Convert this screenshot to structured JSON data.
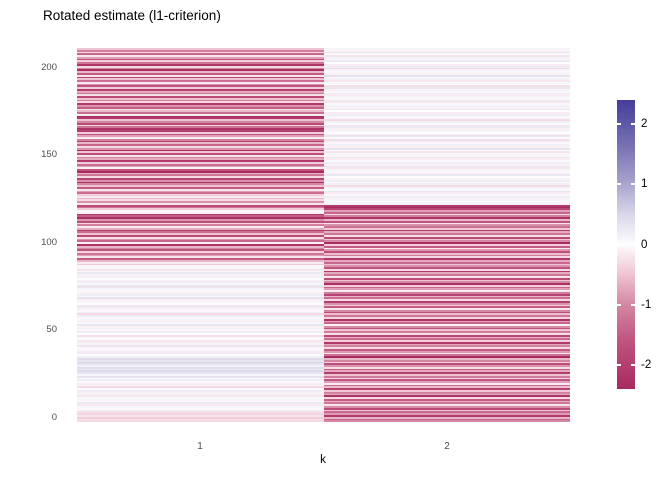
{
  "header": {
    "title": "Rotated estimate (l1-criterion)"
  },
  "axes": {
    "x_label": "k",
    "x_tick_labels": [
      "1",
      "2"
    ],
    "y_tick_labels": [
      "0",
      "50",
      "100",
      "150",
      "200"
    ]
  },
  "legend": {
    "tick_labels": [
      "2",
      "1",
      "0",
      "-1",
      "-2"
    ]
  },
  "chart_data": {
    "type": "heatmap",
    "title": "Rotated estimate (l1-criterion)",
    "xlabel": "k",
    "ylabel": "",
    "x_categories": [
      1,
      2
    ],
    "y_range": [
      1,
      210
    ],
    "y_axis_ticks": [
      0,
      50,
      100,
      150,
      200
    ],
    "row_order": "top_to_bottom",
    "grid": false,
    "legend_position": "right",
    "colorbar": {
      "ticks": [
        2,
        1,
        0,
        -1,
        -2
      ],
      "range": [
        -2.4,
        2.4
      ]
    },
    "color_anchors": [
      [
        -2.4,
        "#A62A5F"
      ],
      [
        -1.6,
        "#C05480"
      ],
      [
        -1.0,
        "#D487A3"
      ],
      [
        -0.5,
        "#EFC3D2"
      ],
      [
        0,
        "#FDFCFE"
      ],
      [
        0.5,
        "#D9D7E9"
      ],
      [
        1.0,
        "#A9A5CF"
      ],
      [
        1.6,
        "#7A74B4"
      ],
      [
        2.4,
        "#453D99"
      ]
    ],
    "series": [
      {
        "name": "k=1",
        "values": [
          -0.5,
          -1.1,
          -0.3,
          -1.4,
          -0.2,
          -0.8,
          -1.7,
          -0.4,
          -1.2,
          -2.2,
          -0.3,
          -1.0,
          -2.3,
          -0.6,
          -1.5,
          -0.2,
          -1.9,
          -0.5,
          -1.3,
          -0.15,
          -0.9,
          -1.6,
          -0.4,
          -2.0,
          -0.7,
          -1.2,
          -0.25,
          -1.8,
          -0.5,
          -1.1,
          -0.3,
          -2.1,
          -0.9,
          -1.5,
          -0.2,
          -0.6,
          -1.3,
          -0.1,
          -2.4,
          -2.1,
          -0.5,
          -1.0,
          -1.8,
          -0.35,
          -1.2,
          -2.2,
          -2.0,
          -0.4,
          -1.6,
          -0.8,
          -0.15,
          -1.1,
          -1.9,
          -0.6,
          -1.4,
          -0.3,
          -0.9,
          -2.3,
          -0.5,
          -1.7,
          -0.2,
          -1.0,
          -0.7,
          -2.1,
          -0.4,
          -1.3,
          -0.8,
          -0.1,
          -1.6,
          -2.4,
          -0.6,
          -1.2,
          -0.3,
          -1.9,
          -0.9,
          -2.2,
          -1.0,
          -0.5,
          -1.5,
          -0.2,
          -0.8,
          -1.3,
          -0.4,
          -0.15,
          -0.6,
          -0.3,
          -0.9,
          -0.2,
          -1.8,
          -1.2,
          -0.4,
          -0.05,
          -0.1,
          -2.1,
          -1.5,
          -2.3,
          -0.9,
          -1.7,
          -0.3,
          -1.1,
          -0.15,
          -0.7,
          -2.0,
          -1.3,
          -0.5,
          -1.8,
          -0.25,
          -0.9,
          -1.4,
          -0.1,
          -2.2,
          -0.6,
          -1.0,
          -1.6,
          -0.35,
          -1.2,
          -0.8,
          -0.2,
          -1.5,
          -0.6,
          -0.15,
          -0.45,
          -0.05,
          0.1,
          -0.2,
          0.05,
          0.25,
          -0.1,
          0.15,
          0,
          -0.15,
          0.2,
          -0.05,
          0.3,
          -0.25,
          0.1,
          0.05,
          -0.1,
          0.2,
          -0.05,
          0.35,
          -0.15,
          0.1,
          0,
          -0.2,
          0.25,
          -0.1,
          0.05,
          0.15,
          -0.3,
          0.2,
          -0.05,
          0.1,
          -0.15,
          0.05,
          0.3,
          -0.1,
          0.15,
          -0.05,
          0.2,
          0,
          -0.25,
          0.1,
          0.05,
          -0.2,
          0.15,
          -0.1,
          0.3,
          -0.05,
          0.1,
          -0.15,
          0.25,
          0,
          0.2,
          0.45,
          0.3,
          0.5,
          0.35,
          0.15,
          0.4,
          0.25,
          0.45,
          0.3,
          0.1,
          0.35,
          -0.05,
          0.2,
          0.05,
          -0.15,
          0.1,
          -0.3,
          0.05,
          0.2,
          -0.1,
          0.15,
          -0.2,
          0.05,
          0.1,
          -0.05,
          0.25,
          -0.15,
          0.1,
          -0.05,
          0.15,
          -0.25,
          -0.35,
          -0.2,
          -0.4,
          -0.25,
          -0.3
        ]
      },
      {
        "name": "k=2",
        "values": [
          0.1,
          -0.1,
          0.3,
          0.05,
          -0.2,
          0.15,
          -0.05,
          0.25,
          0,
          -0.15,
          0.2,
          -0.3,
          0.1,
          0.05,
          -0.1,
          0.35,
          -0.05,
          0.15,
          -0.2,
          0.1,
          0,
          -0.25,
          0.3,
          -0.1,
          0.05,
          0.2,
          -0.15,
          0.1,
          -0.05,
          0.25,
          -0.2,
          0.05,
          0.15,
          -0.1,
          0.3,
          0,
          -0.15,
          0.2,
          -0.05,
          0.1,
          -0.3,
          0.15,
          0.05,
          -0.2,
          0.25,
          -0.1,
          0.1,
          0,
          -0.15,
          0.3,
          0.05,
          -0.25,
          0.2,
          -0.05,
          0.15,
          -0.1,
          0.35,
          0,
          -0.2,
          0.1,
          -0.05,
          0.25,
          -0.15,
          0.05,
          0.2,
          -0.1,
          0.3,
          -0.2,
          0.1,
          0.05,
          -0.15,
          0.25,
          0,
          -0.1,
          0.2,
          -0.05,
          0.15,
          -0.3,
          0.1,
          0.05,
          0.3,
          -0.15,
          0.05,
          0.2,
          -0.1,
          0.1,
          -0.05,
          0.15,
          -2.1,
          -2.4,
          -1.9,
          -0.8,
          -1.4,
          -0.3,
          -1.1,
          -2.2,
          -0.6,
          -1.6,
          -0.2,
          -0.9,
          -1.3,
          -0.45,
          -2.0,
          -0.7,
          -1.2,
          -0.25,
          -1.8,
          -0.5,
          -1.0,
          -2.3,
          -0.4,
          -1.5,
          -0.15,
          -0.85,
          -1.7,
          -0.55,
          -1.1,
          -0.3,
          -2.1,
          -0.75,
          -1.35,
          -0.5,
          -0.9,
          -1.6,
          -0.3,
          -2.1,
          -0.7,
          -1.2,
          -0.2,
          -1.8,
          -0.5,
          -1.0,
          -2.3,
          -0.4,
          -1.4,
          -0.8,
          -0.15,
          -1.1,
          -1.9,
          -0.6,
          -1.3,
          -0.3,
          -2.0,
          -0.9,
          -0.45,
          -1.5,
          -0.2,
          -1.0,
          -1.7,
          -0.55,
          -1.2,
          -0.35,
          -2.2,
          -0.8,
          -1.4,
          -0.1,
          -0.95,
          -1.6,
          -0.5,
          -1.1,
          -0.25,
          -1.85,
          -0.65,
          -1.3,
          -0.4,
          -2.1,
          -0.75,
          -1.05,
          -0.3,
          -1.55,
          -0.85,
          -0.2,
          -1.25,
          -2.4,
          -0.6,
          -1.0,
          -0.4,
          -1.7,
          -0.9,
          -0.25,
          -1.45,
          -0.7,
          -2.0,
          -0.5,
          -1.15,
          -0.35,
          -1.6,
          -0.8,
          -0.15,
          -1.3,
          -0.55,
          -1.9,
          -0.45,
          -1.05,
          -0.7,
          -2.2,
          -0.3,
          -1.5,
          -0.65,
          -1.2,
          -0.2,
          -0.95,
          -1.75,
          -0.5,
          -1.35,
          -0.85,
          -2.1,
          -0.6,
          -1.4,
          -1.0
        ]
      }
    ]
  }
}
